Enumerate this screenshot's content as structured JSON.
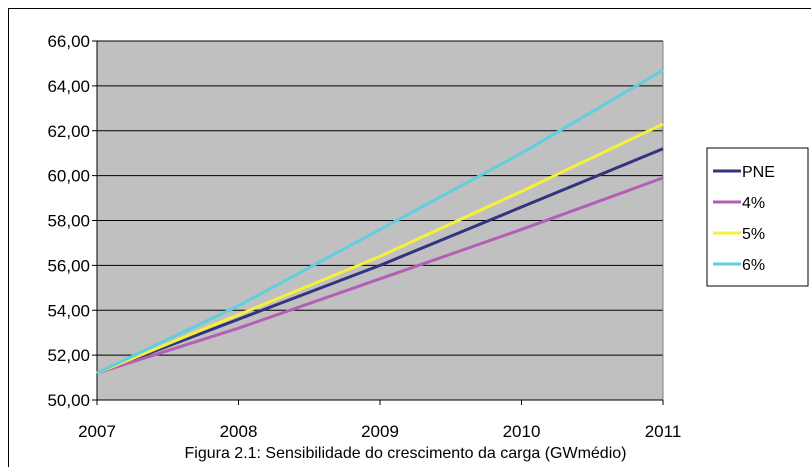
{
  "caption": "Figura 2.1: Sensibilidade do crescimento da carga (GWmédio)",
  "chart_data": {
    "type": "line",
    "title": "",
    "xlabel": "",
    "ylabel": "",
    "x": [
      2007,
      2008,
      2009,
      2010,
      2011
    ],
    "x_tick_labels": [
      "2007",
      "2008",
      "2009",
      "2010",
      "2011"
    ],
    "y_tick_labels": [
      "50,00",
      "52,00",
      "54,00",
      "56,00",
      "58,00",
      "60,00",
      "62,00",
      "64,00",
      "66,00"
    ],
    "ylim": [
      50,
      66
    ],
    "xlim": [
      2007,
      2011
    ],
    "grid": "horizontal",
    "legend_position": "right",
    "plot_background": "#c0c0c0",
    "series": [
      {
        "name": "PNE",
        "color": "#333380",
        "values": [
          51.2,
          53.6,
          56.0,
          58.6,
          61.2
        ]
      },
      {
        "name": "4%",
        "color": "#b35fb5",
        "values": [
          51.2,
          53.2,
          55.4,
          57.6,
          59.9
        ]
      },
      {
        "name": "5%",
        "color": "#f5f03c",
        "values": [
          51.2,
          53.8,
          56.4,
          59.3,
          62.3
        ]
      },
      {
        "name": "6%",
        "color": "#5fcfe0",
        "values": [
          51.2,
          54.2,
          57.6,
          61.0,
          64.7
        ]
      }
    ]
  }
}
